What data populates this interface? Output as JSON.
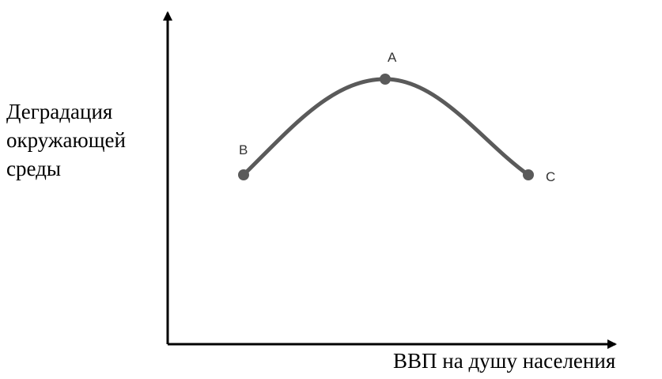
{
  "diagram": {
    "y_axis_label_lines": [
      "Деградация",
      "окружающей",
      "среды"
    ],
    "x_axis_label": "ВВП на душу населения",
    "points": {
      "a": {
        "label": "A"
      },
      "b": {
        "label": "B"
      },
      "c": {
        "label": "C"
      }
    },
    "colors": {
      "axis": "#000000",
      "curve": "#5a5a5a",
      "point": "#5a5a5a",
      "point_label": "#333333"
    }
  }
}
